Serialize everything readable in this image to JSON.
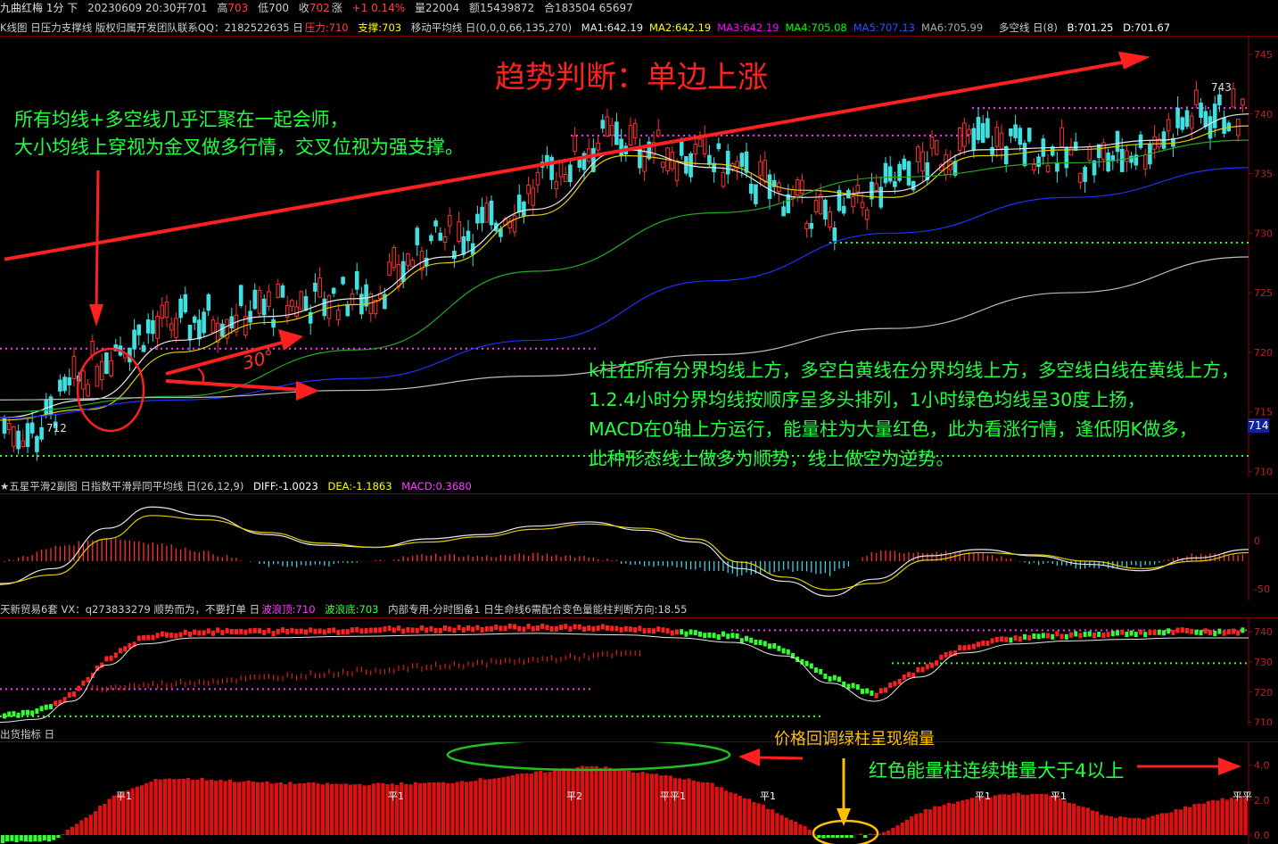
{
  "header": {
    "title": "九曲红梅 1分 下",
    "datetime": "20230609 20:30开701",
    "high_label": "高",
    "high": "703",
    "low_label": "低700",
    "close_label": "收",
    "close": "702",
    "change_label": "涨",
    "change": "+1 0.14%",
    "volume": "量22004",
    "amount": "额15439872",
    "open_interest": "合183504 65697"
  },
  "kline_header": {
    "title": "K线图 日压力支撑线 版权归属开发团队联系QQ：2182522635 日",
    "pressure": "压力:710",
    "support": "支撑:703",
    "ma_name": "移动平均线 日(0,0,0,66,135,270)",
    "ma": [
      {
        "label": "MA1:642.19",
        "color": "#e8e8e8"
      },
      {
        "label": "MA2:642.19",
        "color": "#ffff00"
      },
      {
        "label": "MA3:642.19",
        "color": "#ff00ff"
      },
      {
        "label": "MA4:705.08",
        "color": "#00ff00"
      },
      {
        "label": "MA5:707.13",
        "color": "#3050ff"
      },
      {
        "label": "MA6:705.99",
        "color": "#aaaaaa"
      }
    ],
    "dk_line": "多空线 日(8)",
    "b": "B:701.25",
    "d": "D:701.67"
  },
  "annotations": {
    "trend": "趋势判断：单边上涨",
    "left_note": [
      "所有均线+多空线几乎汇聚在一起会师，",
      "大小均线上穿视为金叉做多行情，交叉位视为强支撑。"
    ],
    "angle": "30°",
    "low_tag": "712",
    "high_tag": "743",
    "right_note": [
      "k柱在所有分界均线上方，多空白黄线在分界均线上方，多空线白线在黄线上方，",
      "1.2.4小时分界均线按顺序呈多头排列，1小时绿色均线呈30度上扬，",
      "MACD在0轴上方运行，能量柱为大量红色，此为看涨行情，逢低阴K做多，",
      "此种形态线上做多为顺势，线上做空为逆势。"
    ],
    "vol_note1": "价格回调绿柱呈现缩量",
    "vol_note2": "红色能量柱连续堆量大于4以上"
  },
  "macd_header": {
    "title": "★五星平滑2副图 日指数平滑异同平均线 日(26,12,9)",
    "diff": "DIFF:-1.0023",
    "dea": "DEA:-1.1863",
    "macd": "MACD:0.3680"
  },
  "trade_header": {
    "title": "天新贸易6套 VX：q273833279  顺势而为，不要打单 日",
    "top": "波浪顶:710",
    "bottom": "波浪底:703",
    "extra": "内部专用-分时图备1 日生命线6需配合变色量能柱判断方向:18.55"
  },
  "vol_header": {
    "title": "出货指标 日"
  },
  "chart_data": [
    {
      "type": "line",
      "name": "main-kline",
      "y_axis_ticks": [
        745,
        740,
        735,
        730,
        725,
        720,
        715,
        710
      ],
      "current_price_tag": "714",
      "ylim": [
        709.5,
        746.5
      ],
      "close_path": {
        "x": [
          0,
          40,
          80,
          120,
          170,
          240,
          330,
          420,
          480,
          560,
          620,
          680,
          740,
          800,
          860,
          930,
          980,
          1040,
          1100,
          1160,
          1220,
          1280,
          1340,
          1400
        ],
        "y": [
          714,
          713,
          717,
          720,
          722,
          723,
          724,
          725,
          729,
          731,
          735,
          738,
          737,
          736,
          734,
          731,
          733,
          736,
          738,
          737,
          736,
          737,
          740,
          740
        ]
      },
      "dotted_levels": [
        {
          "y": 740.5,
          "color": "#ff33ff",
          "x_start": 1090
        },
        {
          "y": 738.2,
          "color": "#ff33ff",
          "x_start": 640,
          "x_end": 1090
        },
        {
          "y": 729.2,
          "color": "#30ff30",
          "x_start": 930
        },
        {
          "y": 720.3,
          "color": "#ff33ff",
          "x_end": 670
        },
        {
          "y": 711.3,
          "color": "#30ff30",
          "x_end": 1400
        }
      ],
      "ma_lines": [
        {
          "color": "#e8e8e8",
          "x": [
            0,
            100,
            200,
            300,
            400,
            500,
            600,
            700,
            800,
            900,
            1000,
            1100,
            1200,
            1300,
            1400
          ],
          "y": [
            714.5,
            716,
            721,
            723,
            724.5,
            728,
            732,
            737,
            735.5,
            733,
            733.5,
            737,
            737.2,
            737.8,
            740
          ]
        },
        {
          "color": "#e0d000",
          "x": [
            0,
            100,
            200,
            300,
            400,
            500,
            600,
            700,
            800,
            900,
            1000,
            1100,
            1200,
            1300,
            1400
          ],
          "y": [
            714.3,
            715.2,
            720,
            722.5,
            724,
            727.5,
            731.5,
            736.5,
            735.8,
            733.6,
            733,
            736.5,
            737,
            737.5,
            739
          ]
        },
        {
          "color": "#22aa22",
          "x": [
            0,
            200,
            400,
            600,
            800,
            1000,
            1200,
            1400
          ],
          "y": [
            715,
            716.3,
            720.2,
            726.8,
            731.7,
            734.7,
            735.9,
            737.8
          ]
        },
        {
          "color": "#2030ff",
          "x": [
            0,
            200,
            400,
            600,
            800,
            1000,
            1200,
            1400
          ],
          "y": [
            714.5,
            716,
            717.8,
            721,
            726,
            730,
            733,
            735.5
          ]
        },
        {
          "color": "#bbbbbb",
          "x": [
            0,
            200,
            400,
            600,
            800,
            1000,
            1200,
            1400
          ],
          "y": [
            716,
            716.2,
            716.8,
            718,
            719.8,
            722,
            725,
            728
          ]
        }
      ],
      "trend_arrow": {
        "from": [
          5,
          727.8
        ],
        "to": [
          1290,
          744.8
        ]
      }
    },
    {
      "type": "line",
      "name": "macd",
      "y_axis_ticks": [
        0,
        -50
      ],
      "zero_y_frac": 0.63,
      "diff": {
        "x": [
          0,
          60,
          120,
          170,
          230,
          300,
          360,
          420,
          480,
          540,
          600,
          660,
          720,
          780,
          830,
          880,
          930,
          980,
          1040,
          1100,
          1160,
          1220,
          1280,
          1340,
          1400
        ],
        "y": [
          0.85,
          0.7,
          0.32,
          0.12,
          0.2,
          0.38,
          0.48,
          0.5,
          0.42,
          0.38,
          0.3,
          0.26,
          0.34,
          0.45,
          0.7,
          0.82,
          0.96,
          0.8,
          0.58,
          0.52,
          0.58,
          0.66,
          0.72,
          0.6,
          0.52
        ]
      },
      "dea": {
        "x": [
          0,
          60,
          120,
          170,
          230,
          300,
          360,
          420,
          480,
          540,
          600,
          660,
          720,
          780,
          830,
          880,
          930,
          980,
          1040,
          1100,
          1160,
          1220,
          1280,
          1340,
          1400
        ],
        "y": [
          0.84,
          0.76,
          0.42,
          0.2,
          0.24,
          0.36,
          0.46,
          0.5,
          0.45,
          0.4,
          0.33,
          0.28,
          0.32,
          0.42,
          0.64,
          0.78,
          0.9,
          0.84,
          0.62,
          0.55,
          0.57,
          0.63,
          0.7,
          0.63,
          0.55
        ]
      }
    },
    {
      "type": "line",
      "name": "trade-dots",
      "y_axis_ticks": [
        740,
        730,
        720,
        710
      ],
      "curve": {
        "x": [
          0,
          40,
          80,
          120,
          160,
          220,
          300,
          400,
          500,
          600,
          700,
          760,
          820,
          880,
          930,
          980,
          1030,
          1080,
          1140,
          1200,
          1260,
          1320,
          1400
        ],
        "y": [
          712,
          713,
          719,
          731,
          738,
          740,
          740,
          740.5,
          741,
          741.5,
          741,
          740,
          738.5,
          734,
          725,
          719,
          727,
          735,
          738,
          739,
          739.5,
          740,
          740
        ]
      },
      "levels": [
        {
          "y": 740.5,
          "color": "#ff33ff",
          "x_start": 820
        },
        {
          "y": 729.6,
          "color": "#33ff33",
          "x_start": 1000
        },
        {
          "y": 721,
          "color": "#ff33ff",
          "x_end": 665
        },
        {
          "y": 712,
          "color": "#33ff33",
          "x_end": 920
        }
      ]
    },
    {
      "type": "bar",
      "name": "volume-energy",
      "y_axis_ticks": [
        "4.0",
        "2.0",
        "0.0"
      ],
      "ylim": [
        0,
        4.8
      ],
      "labels": [
        {
          "text": "平1",
          "x": 130
        },
        {
          "text": "平1",
          "x": 435
        },
        {
          "text": "平2",
          "x": 635
        },
        {
          "text": "平平1",
          "x": 740
        },
        {
          "text": "平1",
          "x": 852
        },
        {
          "text": "平1",
          "x": 1093
        },
        {
          "text": "平1",
          "x": 1178
        },
        {
          "text": "平平",
          "x": 1382
        }
      ],
      "profile": {
        "x": [
          0,
          60,
          80,
          130,
          180,
          230,
          300,
          400,
          500,
          560,
          620,
          660,
          700,
          760,
          800,
          850,
          905,
          915,
          990,
          1040,
          1090,
          1140,
          1180,
          1240,
          1280,
          1330,
          1360,
          1400
        ],
        "y": [
          -0.4,
          -0.3,
          0.4,
          2.3,
          3.25,
          3.2,
          3.0,
          2.9,
          3.0,
          3.3,
          3.7,
          4.0,
          3.7,
          3.3,
          2.9,
          1.8,
          0.5,
          -0.15,
          0.1,
          1.5,
          2.1,
          2.4,
          2.3,
          1.1,
          0.9,
          1.6,
          2.0,
          2.2
        ]
      }
    }
  ]
}
